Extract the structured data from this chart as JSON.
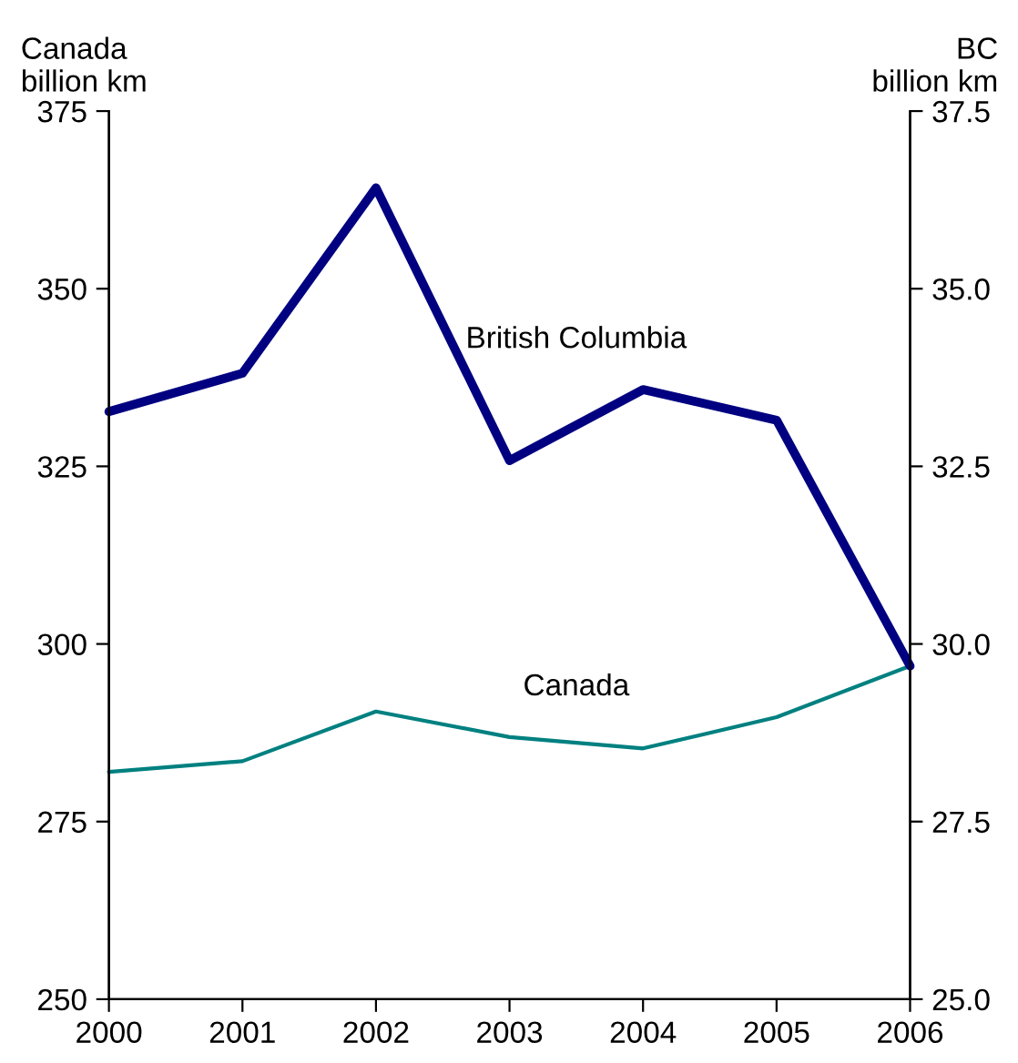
{
  "chart_data": {
    "type": "line",
    "ylabel": "Canada\nbillion km",
    "y2label": "BC\nbillion km",
    "x": [
      2000,
      2001,
      2002,
      2003,
      2004,
      2005,
      2006
    ],
    "series": [
      {
        "name": "British Columbia",
        "color": "#000080",
        "axis": "y2",
        "values": [
          33.27,
          33.81,
          36.42,
          32.58,
          33.58,
          33.15,
          29.69
        ]
      },
      {
        "name": "Canada",
        "color": "#008080",
        "values": [
          282.0,
          283.5,
          290.5,
          286.9,
          285.3,
          289.7,
          296.9
        ]
      }
    ],
    "xlim": [
      2000,
      2006
    ],
    "xticks": [
      2000,
      2001,
      2002,
      2003,
      2004,
      2005,
      2006
    ],
    "ylim": [
      250,
      375
    ],
    "yticks": [
      250,
      275,
      300,
      325,
      350,
      375
    ],
    "y2lim": [
      25,
      37.5
    ],
    "y2ticks": [
      {
        "value": 25,
        "label": "25.0"
      },
      {
        "value": 27.5,
        "label": "27.5"
      },
      {
        "value": 30,
        "label": "30.0"
      },
      {
        "value": 32.5,
        "label": "32.5"
      },
      {
        "value": 35,
        "label": "35.0"
      },
      {
        "value": 37.5,
        "label": "37.5"
      }
    ],
    "grid": false,
    "legend": false,
    "marker": "none",
    "line_style": "solid"
  }
}
